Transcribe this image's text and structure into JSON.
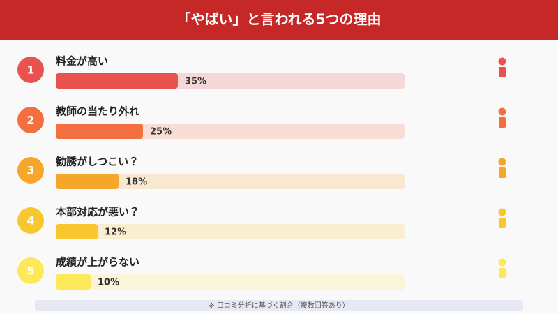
{
  "chart_data": {
    "type": "bar",
    "orientation": "horizontal",
    "title": "「やばい」と言われる5つの理由",
    "ranks": [
      1,
      2,
      3,
      4,
      5
    ],
    "categories": [
      "料金が高い",
      "教師の当たり外れ",
      "勧誘がしつこい？",
      "本部対応が悪い？",
      "成績が上がらない"
    ],
    "values": [
      35,
      25,
      18,
      12,
      10
    ],
    "value_labels": [
      "35%",
      "25%",
      "18%",
      "12%",
      "10%"
    ],
    "colors": [
      "#e9524f",
      "#f36f3f",
      "#f6a62a",
      "#f8c72f",
      "#fde85c"
    ],
    "xlim": [
      0,
      100
    ],
    "note": "※ 口コミ分析に基づく割合（複数回答あり）"
  }
}
